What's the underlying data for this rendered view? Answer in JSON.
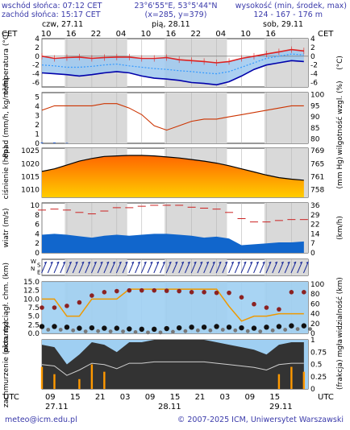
{
  "header": {
    "sunrise": "wschód słońca: 07:12 CET",
    "sunset": "zachód słońca: 15:17 CET",
    "coords": "23°6'55\"E, 53°5'44\"N",
    "grid": "(x=285, y=379)",
    "elev_label": "wysokość (min, środek, max)",
    "elev_values": "124 - 167 - 176 m"
  },
  "top_axis": {
    "tz": "CET",
    "days": [
      "czw, 27.11",
      "pią, 28.11",
      "sob, 29.11"
    ],
    "hours": [
      "10",
      "16",
      "22",
      "04",
      "10",
      "16",
      "22",
      "04",
      "10",
      "16"
    ]
  },
  "bottom_axis": {
    "tz": "UTC",
    "hours": [
      "09",
      "15",
      "21",
      "03",
      "09",
      "15",
      "21",
      "03",
      "09",
      "15"
    ],
    "dates": [
      "27.11",
      "28.11",
      "29.11"
    ]
  },
  "footer": {
    "email": "meteo@icm.edu.pl",
    "copyright": "© 2007-2025 ICM, Uniwersytet Warszawski"
  },
  "colors": {
    "temp_max": "#dd2222",
    "temp_mid": "#3399ff",
    "temp_min": "#0000aa",
    "rain_band": "#3366cc",
    "humidity": "#cc3300",
    "pressure_top": "#ff6600",
    "pressure_bottom": "#ffcc00",
    "wind": "#1166cc",
    "gust": "#cc2222",
    "cloud_base": "#8b2222",
    "visibility": "#ee9900",
    "cloud_dark": "#333333"
  },
  "chart_data": [
    {
      "id": "temperature",
      "type": "line",
      "ylabel_left": "temperatura (°C)",
      "ylabel_right": "(°C)",
      "yticks": [
        "4",
        "2",
        "0",
        "-2",
        "-4",
        "-6"
      ],
      "ylim": [
        -7,
        4
      ],
      "x_hours": [
        0,
        3,
        6,
        9,
        12,
        15,
        18,
        21,
        24,
        27,
        30,
        33,
        36,
        39,
        42,
        45,
        48,
        51,
        54,
        57,
        60,
        63
      ],
      "series": [
        {
          "name": "max",
          "values": [
            0,
            -0.5,
            -0.3,
            -0.2,
            -0.5,
            -0.3,
            -0.2,
            -0.2,
            -0.5,
            -0.5,
            -0.3,
            -0.8,
            -1.0,
            -1.2,
            -1.5,
            -1.2,
            -0.5,
            0,
            0.5,
            1.0,
            1.5,
            1.2
          ]
        },
        {
          "name": "mid",
          "values": [
            -2,
            -2.2,
            -2.5,
            -2.5,
            -2.3,
            -2,
            -1.8,
            -2.2,
            -2.5,
            -2.8,
            -3,
            -3.3,
            -3.5,
            -3.8,
            -4,
            -3.5,
            -2.5,
            -1.5,
            -0.5,
            0,
            0.5,
            0.3
          ]
        },
        {
          "name": "min",
          "values": [
            -3.8,
            -4,
            -4.2,
            -4.5,
            -4.2,
            -3.8,
            -3.5,
            -3.8,
            -4.5,
            -5,
            -5.2,
            -5.5,
            -6,
            -6.2,
            -6.5,
            -5.8,
            -4.5,
            -3,
            -2,
            -1.5,
            -1,
            -1.2
          ]
        }
      ]
    },
    {
      "id": "precip_humidity",
      "type": "line",
      "ylabel_left": "opad (mm/h, kg/m²/h)",
      "ylabel_right": "wilgotność wzgl. (%)",
      "yticks_left": [
        "5",
        "4",
        "3",
        "2",
        "1",
        "0"
      ],
      "yticks_right": [
        "100",
        "95",
        "90",
        "85",
        "80"
      ],
      "ylim_left": [
        0,
        5.5
      ],
      "ylim_right": [
        78,
        101
      ],
      "x_hours": [
        0,
        3,
        6,
        9,
        12,
        15,
        18,
        21,
        24,
        27,
        30,
        33,
        36,
        39,
        42,
        45,
        48,
        51,
        54,
        57,
        60,
        63
      ],
      "series": [
        {
          "name": "humidity",
          "values": [
            93,
            95,
            95,
            95,
            95,
            96,
            96,
            94,
            91,
            86,
            84,
            86,
            88,
            89,
            89,
            90,
            91,
            92,
            93,
            94,
            95,
            95
          ]
        },
        {
          "name": "precip",
          "values": [
            0.1,
            0.1,
            0.05,
            0,
            0,
            0,
            0,
            0,
            0,
            0,
            0,
            0,
            0,
            0,
            0,
            0,
            0,
            0,
            0,
            0,
            0,
            0
          ]
        }
      ]
    },
    {
      "id": "pressure",
      "type": "area",
      "ylabel_left": "ciśnienie (hPa)",
      "ylabel_right": "(mm Hg)",
      "yticks_left": [
        "1025",
        "1020",
        "1015",
        "1010"
      ],
      "yticks_right": [
        "769",
        "765",
        "761",
        "758"
      ],
      "ylim": [
        1007,
        1026
      ],
      "x_hours": [
        0,
        3,
        6,
        9,
        12,
        15,
        18,
        21,
        24,
        27,
        30,
        33,
        36,
        39,
        42,
        45,
        48,
        51,
        54,
        57,
        60,
        63
      ],
      "values": [
        1017,
        1018,
        1019.5,
        1021,
        1022,
        1022.8,
        1023,
        1023.2,
        1023.2,
        1023,
        1022.6,
        1022.2,
        1021.6,
        1021,
        1020.2,
        1019.2,
        1018,
        1016.8,
        1015.6,
        1014.6,
        1014,
        1013.6
      ]
    },
    {
      "id": "wind",
      "type": "area",
      "ylabel_left": "wiatr (m/s)",
      "ylabel_right": "(km/h)",
      "yticks_left": [
        "10",
        "8",
        "6",
        "4",
        "2",
        "0"
      ],
      "yticks_right": [
        "36",
        "29",
        "22",
        "14",
        "7",
        "0"
      ],
      "ylim": [
        0,
        10.5
      ],
      "x_hours": [
        0,
        3,
        6,
        9,
        12,
        15,
        18,
        21,
        24,
        27,
        30,
        33,
        36,
        39,
        42,
        45,
        48,
        51,
        54,
        57,
        60,
        63
      ],
      "series": [
        {
          "name": "wind",
          "values": [
            3.8,
            4,
            3.8,
            3.5,
            3.2,
            3.6,
            3.8,
            3.6,
            3.8,
            4,
            4,
            3.8,
            3.6,
            3.2,
            3.4,
            3,
            1.6,
            1.8,
            2,
            2.2,
            2.2,
            2.4
          ]
        },
        {
          "name": "gust",
          "values": [
            9,
            9.2,
            9,
            8.5,
            8.2,
            8.8,
            9.5,
            9.5,
            9.8,
            10,
            10,
            10,
            9.6,
            9.4,
            9.2,
            8.5,
            7.2,
            6.5,
            6.5,
            6.8,
            7,
            7
          ]
        }
      ]
    },
    {
      "id": "wind_direction",
      "type": "scatter",
      "ylabel_left": "W S N E",
      "note": "wind direction arrows, mostly from south-west"
    },
    {
      "id": "cloud_visibility",
      "type": "scatter",
      "ylabel_left": "pion. rozciągł. chm. (km)",
      "ylabel_right": "widzialność (km)",
      "yticks_left": [
        "15.0",
        "12.5",
        "10.0",
        "7.5",
        "5.0",
        "2.5",
        "0.0"
      ],
      "yticks_right": [
        "100",
        "80",
        "60",
        "40",
        "20",
        "0"
      ],
      "ylim": [
        0,
        15
      ],
      "x_hours": [
        0,
        3,
        6,
        9,
        12,
        15,
        18,
        21,
        24,
        27,
        30,
        33,
        36,
        39,
        42,
        45,
        48,
        51,
        54,
        57,
        60,
        63
      ],
      "series": [
        {
          "name": "cloud_top",
          "values": [
            7.5,
            7.5,
            8,
            9,
            11,
            12,
            12.3,
            12.5,
            12.5,
            12.5,
            12.4,
            12.3,
            12,
            12,
            11.8,
            11.8,
            10.5,
            8.5,
            7.5,
            7,
            12,
            12
          ]
        },
        {
          "name": "cloud_base",
          "values": [
            2,
            2,
            1.8,
            1.5,
            1.6,
            1.5,
            1.5,
            1.3,
            1.2,
            1.2,
            1.4,
            1.6,
            1.8,
            1.8,
            2,
            1.8,
            1.6,
            1.5,
            1.8,
            2,
            2.2,
            2.2
          ]
        },
        {
          "name": "visibility",
          "values": [
            70,
            70,
            35,
            35,
            70,
            70,
            70,
            90,
            90,
            90,
            90,
            90,
            90,
            90,
            90,
            55,
            25,
            35,
            35,
            40,
            40,
            40
          ]
        }
      ]
    },
    {
      "id": "cloud_fraction",
      "type": "area",
      "ylabel_left": "zachmurzenie (oktanty)",
      "ylabel_right": "(frakcja) mgła",
      "yticks_right": [
        "1",
        "0.75",
        "0.5",
        "0.25",
        "0"
      ],
      "ylim": [
        0,
        1
      ],
      "x_hours": [
        0,
        3,
        6,
        9,
        12,
        15,
        18,
        21,
        24,
        27,
        30,
        33,
        36,
        39,
        42,
        45,
        48,
        51,
        54,
        57,
        60,
        63
      ],
      "series": [
        {
          "name": "low",
          "values": [
            0.9,
            0.85,
            0.5,
            0.7,
            0.95,
            0.9,
            0.75,
            0.95,
            0.95,
            1,
            1,
            1,
            1,
            1,
            0.95,
            0.9,
            0.85,
            0.8,
            0.7,
            0.9,
            0.95,
            0.95
          ]
        },
        {
          "name": "fog",
          "values": [
            0.45,
            0.3,
            0,
            0.2,
            0.5,
            0.35,
            0,
            0,
            0,
            0,
            0,
            0,
            0,
            0,
            0,
            0,
            0,
            0,
            0,
            0.3,
            0.45,
            0.35
          ]
        }
      ]
    }
  ]
}
